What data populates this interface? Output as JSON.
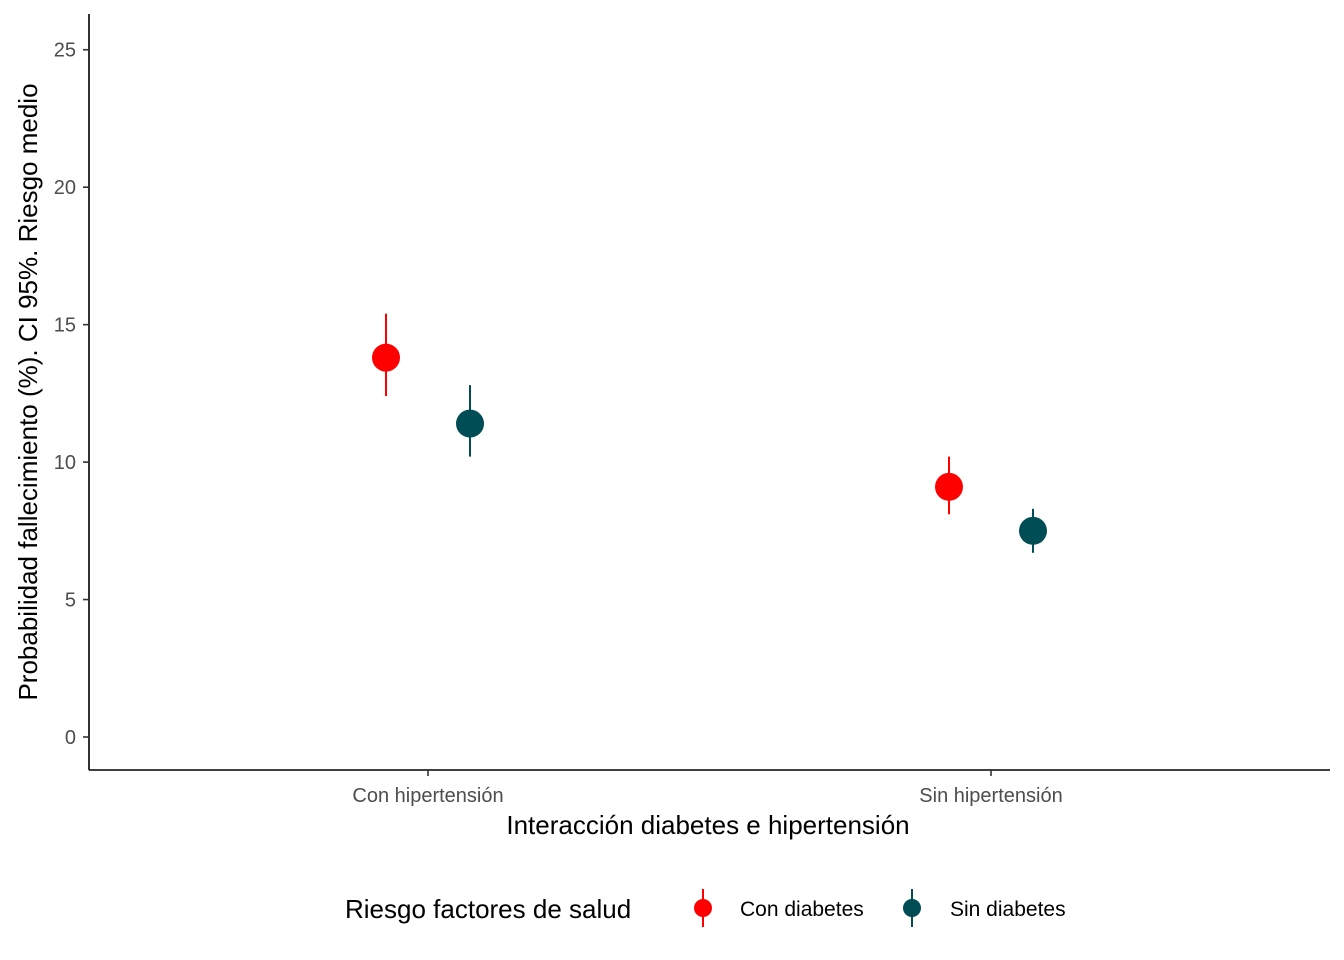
{
  "chart_data": {
    "type": "scatter",
    "xlabel": "Interacción diabetes e hipertensión",
    "ylabel": "Probabilidad fallecimiento (%). CI 95%. Riesgo medio",
    "categories": [
      "Con hipertensión",
      "Sin hipertensión"
    ],
    "ylim": [
      -1.2,
      26.3
    ],
    "yticks": [
      0,
      5,
      10,
      15,
      20,
      25
    ],
    "grid": false,
    "legend": {
      "title": "Riesgo factores de salud",
      "position": "bottom"
    },
    "series": [
      {
        "name": "Con diabetes",
        "color": "#ff0000",
        "values": [
          13.8,
          9.1
        ],
        "lower": [
          12.4,
          8.1
        ],
        "upper": [
          15.4,
          10.2
        ]
      },
      {
        "name": "Sin diabetes",
        "color": "#004d55",
        "values": [
          11.4,
          7.5
        ],
        "lower": [
          10.2,
          6.7
        ],
        "upper": [
          12.8,
          8.3
        ]
      }
    ]
  }
}
